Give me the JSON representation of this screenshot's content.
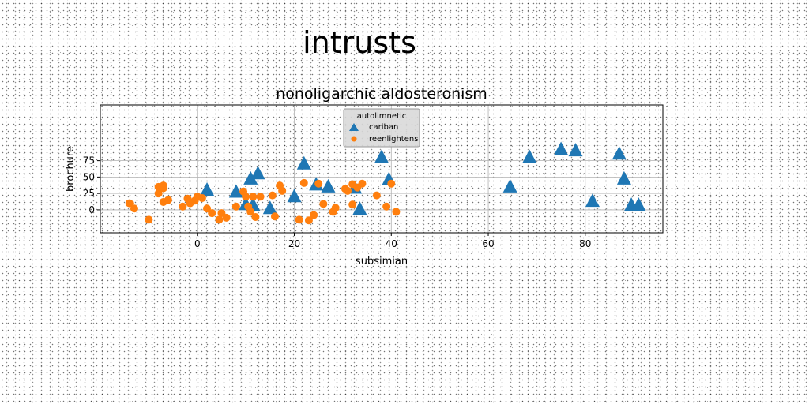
{
  "suptitle": "intrusts",
  "chart_data": {
    "type": "scatter",
    "title": "nonoligarchic aldosteronism",
    "xlabel": "subsimian",
    "ylabel": "brochure",
    "xlim": [
      -20,
      96
    ],
    "ylim": [
      -35,
      160
    ],
    "xticks": [
      0,
      20,
      40,
      60,
      80
    ],
    "yticks": [
      0,
      25,
      50,
      75
    ],
    "grid": true,
    "legend": {
      "title": "autolimnetic",
      "placement": "top-center"
    },
    "series": [
      {
        "name": "cariban",
        "marker": "triangle",
        "color": "#1f77b4",
        "points": [
          [
            2,
            30
          ],
          [
            8,
            27
          ],
          [
            10,
            8
          ],
          [
            11,
            47
          ],
          [
            11.5,
            7
          ],
          [
            12.5,
            55
          ],
          [
            15,
            2
          ],
          [
            20,
            20
          ],
          [
            22,
            70
          ],
          [
            24.5,
            38
          ],
          [
            27,
            35
          ],
          [
            32.5,
            33
          ],
          [
            33.5,
            1
          ],
          [
            38,
            80
          ],
          [
            39.5,
            46
          ],
          [
            64.5,
            35
          ],
          [
            68.5,
            80
          ],
          [
            75,
            92
          ],
          [
            78,
            90
          ],
          [
            81.5,
            13
          ],
          [
            87,
            85
          ],
          [
            88,
            47
          ],
          [
            89.5,
            7
          ],
          [
            91,
            7
          ]
        ]
      },
      {
        "name": "reenlightens",
        "marker": "circle",
        "color": "#ff7f0e",
        "points": [
          [
            -14,
            10
          ],
          [
            -13,
            2
          ],
          [
            -10,
            -15
          ],
          [
            -8,
            35
          ],
          [
            -8,
            25
          ],
          [
            -7,
            37
          ],
          [
            -7,
            33
          ],
          [
            -7,
            12
          ],
          [
            -6,
            15
          ],
          [
            -3,
            5
          ],
          [
            -2,
            17
          ],
          [
            -1.5,
            10
          ],
          [
            -0.5,
            14
          ],
          [
            0,
            20
          ],
          [
            1,
            18
          ],
          [
            2,
            2
          ],
          [
            3,
            -5
          ],
          [
            4.5,
            -15
          ],
          [
            5,
            -5
          ],
          [
            6,
            -12
          ],
          [
            8,
            5
          ],
          [
            9.5,
            28
          ],
          [
            10,
            20
          ],
          [
            10.5,
            5
          ],
          [
            11,
            -3
          ],
          [
            11.5,
            20
          ],
          [
            12,
            -11
          ],
          [
            13,
            20
          ],
          [
            15.5,
            22
          ],
          [
            16,
            -10
          ],
          [
            17,
            37
          ],
          [
            17.5,
            29
          ],
          [
            21,
            -15
          ],
          [
            22,
            41
          ],
          [
            23,
            -16
          ],
          [
            24,
            -8
          ],
          [
            25,
            40
          ],
          [
            26,
            9
          ],
          [
            28,
            -3
          ],
          [
            28.5,
            3
          ],
          [
            30.5,
            32
          ],
          [
            31,
            29
          ],
          [
            32,
            8
          ],
          [
            32,
            39
          ],
          [
            33,
            34
          ],
          [
            34,
            40
          ],
          [
            37,
            22
          ],
          [
            39,
            5
          ],
          [
            40,
            40
          ],
          [
            41,
            -3
          ]
        ]
      }
    ]
  }
}
